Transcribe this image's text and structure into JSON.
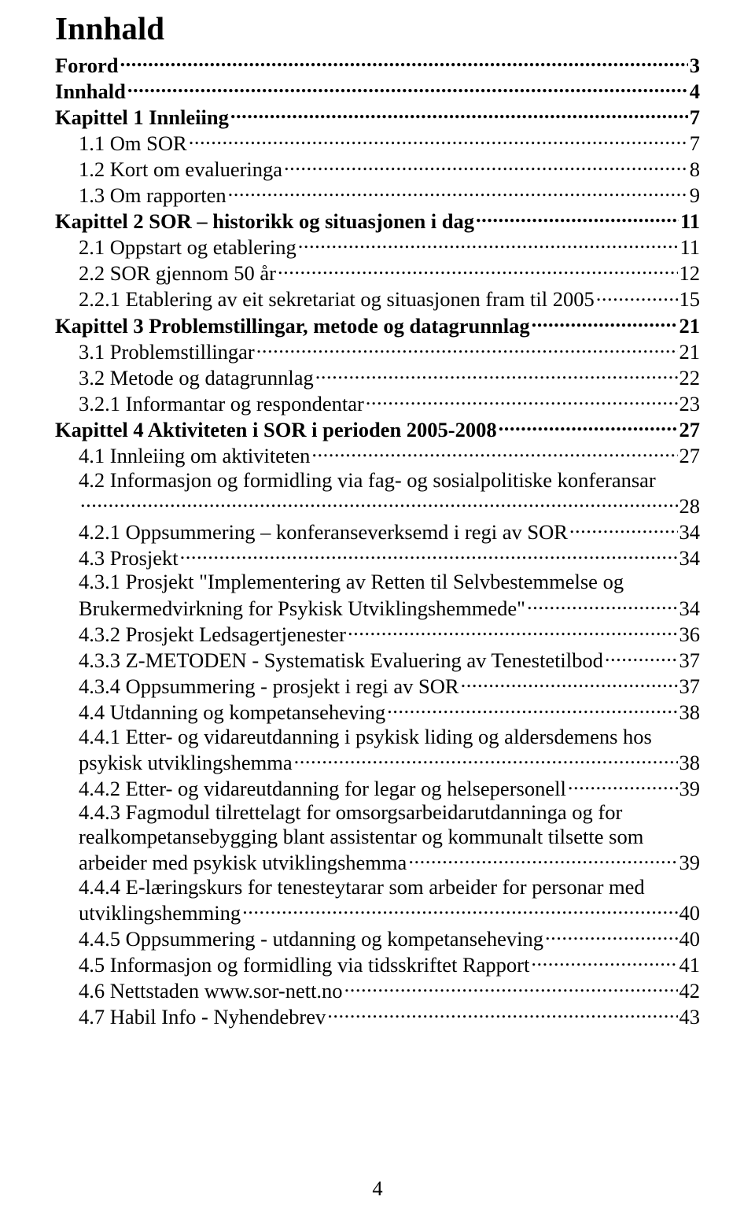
{
  "title": "Innhald",
  "page_number": "4",
  "entries": [
    {
      "type": "row",
      "indent": 0,
      "bold": true,
      "label": "Forord",
      "page": "3"
    },
    {
      "type": "row",
      "indent": 0,
      "bold": true,
      "label": "Innhald",
      "page": "4"
    },
    {
      "type": "row",
      "indent": 0,
      "bold": true,
      "label": "Kapittel 1 Innleiing",
      "page": "7"
    },
    {
      "type": "row",
      "indent": 1,
      "bold": false,
      "label": "1.1 Om SOR",
      "page": "7"
    },
    {
      "type": "row",
      "indent": 1,
      "bold": false,
      "label": "1.2 Kort om evalueringa",
      "page": "8"
    },
    {
      "type": "row",
      "indent": 1,
      "bold": false,
      "label": "1.3 Om rapporten",
      "page": "9"
    },
    {
      "type": "row",
      "indent": 0,
      "bold": true,
      "label": "Kapittel 2  SOR – historikk og situasjonen i dag",
      "page": "11"
    },
    {
      "type": "row",
      "indent": 1,
      "bold": false,
      "label": "2.1 Oppstart og etablering",
      "page": "11"
    },
    {
      "type": "row",
      "indent": 1,
      "bold": false,
      "label": "2.2 SOR gjennom 50 år",
      "page": "12"
    },
    {
      "type": "row",
      "indent": 2,
      "bold": false,
      "label": "2.2.1 Etablering av eit sekretariat og situasjonen fram til 2005",
      "page": "15"
    },
    {
      "type": "row",
      "indent": 0,
      "bold": true,
      "label": "Kapittel 3 Problemstillingar, metode og datagrunnlag",
      "page": "21"
    },
    {
      "type": "row",
      "indent": 1,
      "bold": false,
      "label": "3.1 Problemstillingar",
      "page": "21"
    },
    {
      "type": "row",
      "indent": 1,
      "bold": false,
      "label": "3.2 Metode og datagrunnlag",
      "page": "22"
    },
    {
      "type": "row",
      "indent": 2,
      "bold": false,
      "label": "3.2.1 Informantar og respondentar",
      "page": "23"
    },
    {
      "type": "row",
      "indent": 0,
      "bold": true,
      "label": "Kapittel 4 Aktiviteten i SOR i perioden 2005-2008",
      "page": "27"
    },
    {
      "type": "row",
      "indent": 1,
      "bold": false,
      "label": "4.1 Innleiing om aktiviteten",
      "page": "27"
    },
    {
      "type": "wrap",
      "indent": 1,
      "bold": false,
      "label": "4.2 Informasjon og formidling via fag- og sosialpolitiske konferansar"
    },
    {
      "type": "row",
      "indent": 1,
      "bold": false,
      "label": "",
      "page": "28"
    },
    {
      "type": "row",
      "indent": 2,
      "bold": false,
      "label": "4.2.1 Oppsummering – konferanseverksemd i regi av SOR",
      "page": "34"
    },
    {
      "type": "row",
      "indent": 1,
      "bold": false,
      "label": "4.3 Prosjekt",
      "page": "34"
    },
    {
      "type": "wrap",
      "indent": 2,
      "bold": false,
      "label": "4.3.1 Prosjekt \"Implementering av Retten til Selvbestemmelse og"
    },
    {
      "type": "row",
      "indent": 2,
      "bold": false,
      "label": "Brukermedvirkning for Psykisk Utviklingshemmede\"",
      "page": "34"
    },
    {
      "type": "row",
      "indent": 2,
      "bold": false,
      "label": "4.3.2 Prosjekt Ledsagertjenester",
      "page": "36"
    },
    {
      "type": "row",
      "indent": 2,
      "bold": false,
      "label": "4.3.3 Z-METODEN - Systematisk Evaluering av Tenestetilbod",
      "page": "37"
    },
    {
      "type": "row",
      "indent": 2,
      "bold": false,
      "label": "4.3.4 Oppsummering - prosjekt i regi av SOR",
      "page": "37"
    },
    {
      "type": "row",
      "indent": 1,
      "bold": false,
      "label": "4.4 Utdanning og kompetanseheving",
      "page": "38"
    },
    {
      "type": "wrap",
      "indent": 2,
      "bold": false,
      "label": "4.4.1 Etter- og vidareutdanning i psykisk liding og aldersdemens hos"
    },
    {
      "type": "row",
      "indent": 2,
      "bold": false,
      "label": "psykisk utviklingshemma",
      "page": "38"
    },
    {
      "type": "row",
      "indent": 2,
      "bold": false,
      "label": "4.4.2 Etter- og vidareutdanning for legar og helsepersonell",
      "page": "39"
    },
    {
      "type": "wrap",
      "indent": 2,
      "bold": false,
      "label": "4.4.3 Fagmodul tilrettelagt for omsorgsarbeidarutdanninga og for"
    },
    {
      "type": "wrap",
      "indent": 2,
      "bold": false,
      "label": "realkompetansebygging blant assistentar og kommunalt tilsette som"
    },
    {
      "type": "row",
      "indent": 2,
      "bold": false,
      "label": "arbeider med psykisk utviklingshemma",
      "page": "39"
    },
    {
      "type": "wrap",
      "indent": 2,
      "bold": false,
      "label": "4.4.4 E-læringskurs for tenesteytarar som arbeider for personar med"
    },
    {
      "type": "row",
      "indent": 2,
      "bold": false,
      "label": "utviklingshemming",
      "page": "40"
    },
    {
      "type": "row",
      "indent": 2,
      "bold": false,
      "label": "4.4.5 Oppsummering - utdanning og kompetanseheving",
      "page": "40"
    },
    {
      "type": "row",
      "indent": 1,
      "bold": false,
      "label": "4.5 Informasjon og formidling via tidsskriftet Rapport",
      "page": "41"
    },
    {
      "type": "row",
      "indent": 1,
      "bold": false,
      "label": "4.6 Nettstaden www.sor-nett.no",
      "page": "42"
    },
    {
      "type": "row",
      "indent": 1,
      "bold": false,
      "label": "4.7 Habil Info - Nyhendebrev",
      "page": "43"
    }
  ]
}
